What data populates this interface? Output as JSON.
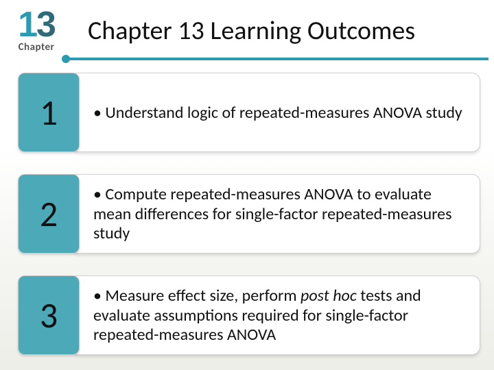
{
  "badge": {
    "number_digit1": "1",
    "number_digit2": "3",
    "label": "Chapter"
  },
  "title": "Chapter 13 Learning Outcomes",
  "colors": {
    "accent": "#2a9bb0",
    "accent_dark": "#2d6b7b",
    "block": "#4ba9b8",
    "body_bg": "#ffffff",
    "border": "#d0d0d0",
    "text": "#111111"
  },
  "items": [
    {
      "num": "1",
      "bullet": "•",
      "text_before": "Understand logic of repeated-measures ANOVA study",
      "italic": "",
      "text_after": ""
    },
    {
      "num": "2",
      "bullet": "•",
      "text_before": "Compute repeated-measures ANOVA to evaluate mean differences for single-factor repeated-measures study",
      "italic": "",
      "text_after": ""
    },
    {
      "num": "3",
      "bullet": "•",
      "text_before": "Measure effect size, perform ",
      "italic": "post hoc",
      "text_after": " tests and evaluate assumptions required for single-factor repeated-measures  ANOVA"
    }
  ]
}
